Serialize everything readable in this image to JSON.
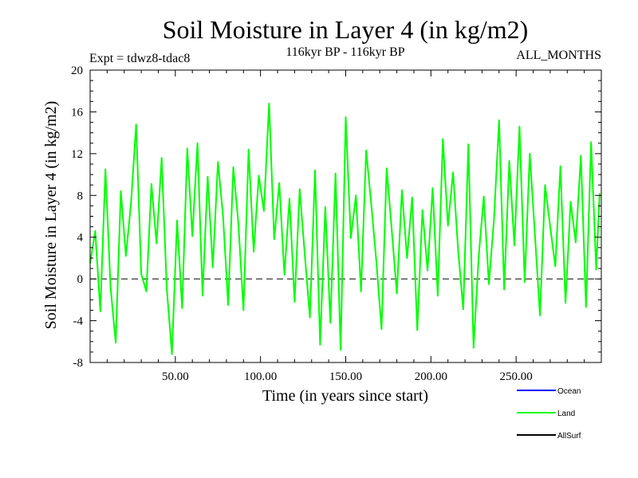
{
  "chart_data": {
    "type": "line",
    "title": "Soil Moisture in Layer 4 (in kg/m2)",
    "subtitle": "116kyr BP - 116kyr BP",
    "experiment": "Expt = tdwz8-tdac8",
    "period": "ALL_MONTHS",
    "xlabel": "Time (in years since start)",
    "ylabel": "Soil Moisture in Layer 4 (in kg/m2)",
    "xlim": [
      0,
      300
    ],
    "ylim": [
      -8,
      20
    ],
    "x_ticks": [
      50,
      100,
      150,
      200,
      250
    ],
    "x_tick_labels": [
      "50.00",
      "100.00",
      "150.00",
      "200.00",
      "250.00"
    ],
    "y_ticks": [
      -8,
      -4,
      0,
      4,
      8,
      12,
      16,
      20
    ],
    "y_tick_labels": [
      "-8",
      "-4",
      "0",
      "4",
      "8",
      "12",
      "16",
      "20"
    ],
    "zero_line": {
      "value": 0,
      "style": "dashed"
    },
    "legend_position": "bottom-right",
    "series": [
      {
        "name": "Ocean",
        "color": "#0000ff",
        "x": [],
        "values": []
      },
      {
        "name": "Land",
        "color": "#00ff00",
        "x": [
          0,
          3,
          6,
          9,
          12,
          15,
          18,
          21,
          24,
          27,
          30,
          33,
          36,
          39,
          42,
          45,
          48,
          51,
          54,
          57,
          60,
          63,
          66,
          69,
          72,
          75,
          78,
          81,
          84,
          87,
          90,
          93,
          96,
          99,
          102,
          105,
          108,
          111,
          114,
          117,
          120,
          123,
          126,
          129,
          132,
          135,
          138,
          141,
          144,
          147,
          150,
          153,
          156,
          159,
          162,
          165,
          168,
          171,
          174,
          177,
          180,
          183,
          186,
          189,
          192,
          195,
          198,
          201,
          204,
          207,
          210,
          213,
          216,
          219,
          222,
          225,
          228,
          231,
          234,
          237,
          240,
          243,
          246,
          249,
          252,
          255,
          258,
          261,
          264,
          267,
          270,
          273,
          276,
          279,
          282,
          285,
          288,
          291,
          294,
          297,
          299
        ],
        "values": [
          1.5,
          4.6,
          -3.1,
          10.5,
          -0.8,
          -6.1,
          8.4,
          2.2,
          7.3,
          14.8,
          0.5,
          -1.2,
          9.1,
          3.4,
          11.6,
          -0.9,
          -7.2,
          5.6,
          -2.8,
          12.5,
          4.1,
          13.0,
          -1.6,
          9.8,
          1.1,
          11.2,
          6.0,
          -2.5,
          10.7,
          5.3,
          -3.0,
          12.4,
          2.6,
          9.9,
          6.5,
          16.8,
          3.8,
          9.2,
          0.4,
          7.7,
          -2.2,
          8.6,
          2.3,
          -3.7,
          10.4,
          -6.3,
          6.9,
          -4.2,
          10.1,
          -6.8,
          15.5,
          3.9,
          8.0,
          -1.2,
          12.3,
          7.1,
          1.6,
          -4.8,
          10.6,
          4.7,
          -1.4,
          8.5,
          2.0,
          7.8,
          -4.9,
          6.6,
          0.8,
          8.7,
          -1.6,
          13.4,
          5.1,
          10.2,
          2.7,
          -2.9,
          12.9,
          -6.6,
          2.1,
          7.9,
          -0.5,
          5.7,
          15.2,
          -1.0,
          11.3,
          3.2,
          14.6,
          -0.3,
          12.0,
          4.3,
          -3.5,
          9.0,
          5.0,
          1.2,
          10.8,
          -2.3,
          7.4,
          3.5,
          11.8,
          -2.7,
          13.1,
          0.9,
          8.2
        ]
      },
      {
        "name": "AllSurf",
        "color": "#000000",
        "x": [],
        "values": []
      }
    ]
  }
}
